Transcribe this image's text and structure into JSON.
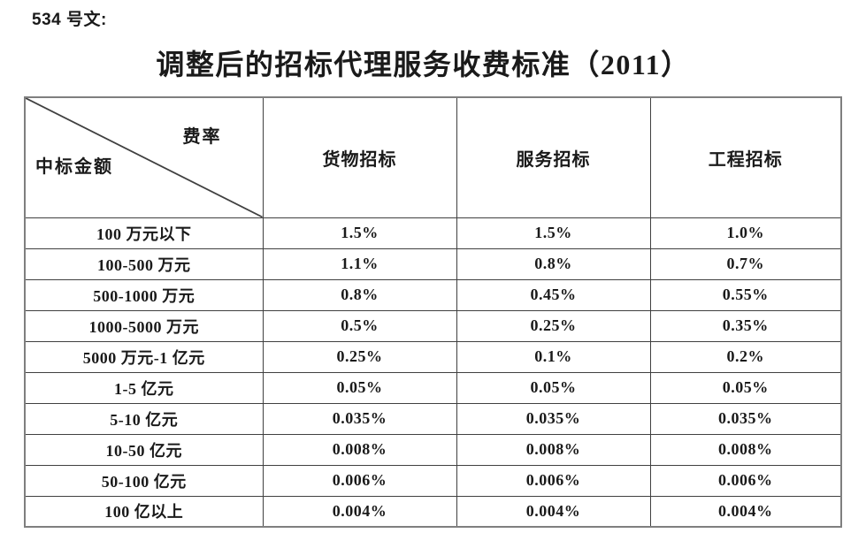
{
  "doc": {
    "reference": "534 号文:",
    "title": "调整后的招标代理服务收费标准（2011）"
  },
  "table": {
    "corner": {
      "rate_label": "费率",
      "amount_label": "中标金额"
    },
    "columns": [
      "货物招标",
      "服务招标",
      "工程招标"
    ],
    "rows": [
      {
        "label": "100 万元以下",
        "values": [
          "1.5%",
          "1.5%",
          "1.0%"
        ]
      },
      {
        "label": "100-500 万元",
        "values": [
          "1.1%",
          "0.8%",
          "0.7%"
        ]
      },
      {
        "label": "500-1000 万元",
        "values": [
          "0.8%",
          "0.45%",
          "0.55%"
        ]
      },
      {
        "label": "1000-5000 万元",
        "values": [
          "0.5%",
          "0.25%",
          "0.35%"
        ]
      },
      {
        "label": "5000 万元-1 亿元",
        "values": [
          "0.25%",
          "0.1%",
          "0.2%"
        ]
      },
      {
        "label": "1-5 亿元",
        "values": [
          "0.05%",
          "0.05%",
          "0.05%"
        ]
      },
      {
        "label": "5-10 亿元",
        "values": [
          "0.035%",
          "0.035%",
          "0.035%"
        ]
      },
      {
        "label": "10-50 亿元",
        "values": [
          "0.008%",
          "0.008%",
          "0.008%"
        ]
      },
      {
        "label": "50-100 亿元",
        "values": [
          "0.006%",
          "0.006%",
          "0.006%"
        ]
      },
      {
        "label": "100 亿以上",
        "values": [
          "0.004%",
          "0.004%",
          "0.004%"
        ]
      }
    ]
  },
  "colors": {
    "border_outer": "#7f7f7f",
    "border_inner": "#404040",
    "text": "#1a1a1a"
  }
}
